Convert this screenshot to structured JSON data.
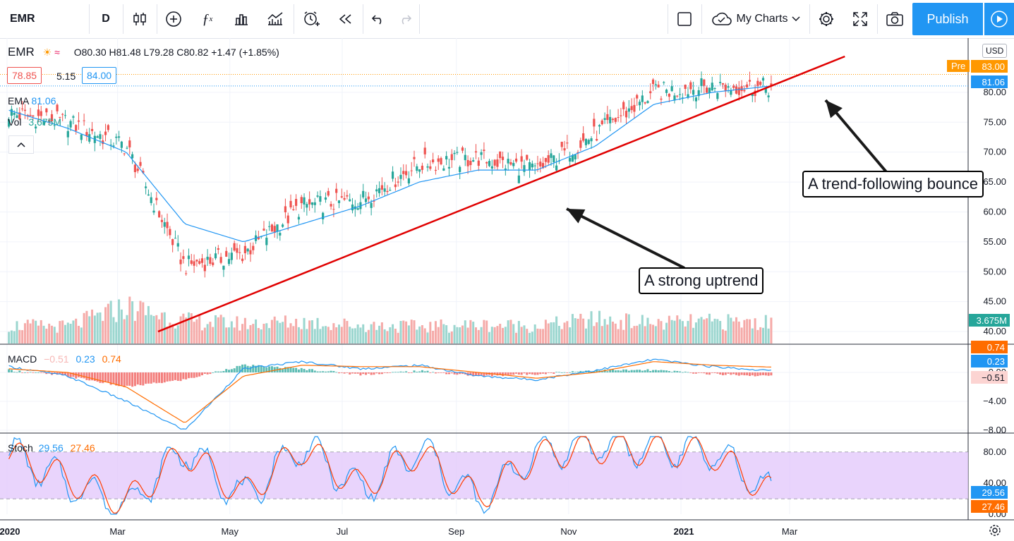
{
  "toolbar": {
    "symbol": "EMR",
    "interval": "D",
    "my_charts": "My Charts",
    "publish": "Publish"
  },
  "legend": {
    "symbol": "EMR",
    "ohlc": "O80.30 H81.48 L79.28 C80.82 +1.47 (+1.85%)",
    "bid": "78.85",
    "spread": "5.15",
    "ask": "84.00",
    "ema_label": "EMA",
    "ema_value": "81.06",
    "vol_label": "Vol",
    "vol_value": "3.675M",
    "macd_label": "MACD",
    "macd_hist": "−0.51",
    "macd_line": "0.23",
    "macd_signal": "0.74",
    "stoch_label": "Stoch",
    "stoch_k": "29.56",
    "stoch_d": "27.46"
  },
  "price_scale": {
    "currency": "USD",
    "ticks": [
      "80.00",
      "75.00",
      "70.00",
      "65.00",
      "60.00",
      "55.00",
      "50.00",
      "45.00",
      "40.00"
    ],
    "pre_label": "Pre",
    "pre_value": "83.00",
    "last_value": "81.06",
    "vol_value": "3.675M"
  },
  "macd_scale": {
    "ticks": [
      "0.00",
      "−4.00",
      "−8.00"
    ],
    "signal_tag": "0.74",
    "macd_tag": "0.23",
    "hist_tag": "−0.51"
  },
  "stoch_scale": {
    "ticks": [
      "80.00",
      "40.00",
      "0.00"
    ],
    "k_tag": "29.56",
    "d_tag": "27.46"
  },
  "time_axis": [
    "2020",
    "Mar",
    "May",
    "Jul",
    "Sep",
    "Nov",
    "2021",
    "Mar"
  ],
  "annotations": {
    "uptrend": "A strong uptrend",
    "bounce": "A trend-following bounce"
  },
  "colors": {
    "up": "#26a69a",
    "down": "#ef5350",
    "ema": "#2196f3",
    "macd": "#2196f3",
    "signal": "#ff6d00",
    "trendline": "#e00000",
    "stoch_band": "#e1c6fb",
    "accent": "#2196f3"
  },
  "chart_data": [
    {
      "type": "candlestick",
      "title": "EMR",
      "x": [
        "2020-01",
        "2020-02",
        "2020-03",
        "2020-04",
        "2020-05",
        "2020-06",
        "2020-07",
        "2020-08",
        "2020-09",
        "2020-10",
        "2020-11",
        "2020-12",
        "2021-01",
        "2021-02"
      ],
      "series": [
        {
          "name": "EMR",
          "values": [
            76.5,
            75,
            71,
            51,
            53,
            61,
            62,
            68,
            69,
            67,
            73,
            80,
            81,
            80.8
          ]
        },
        {
          "name": "EMA",
          "values": [
            77,
            74,
            70,
            58,
            55,
            58,
            61,
            65,
            67,
            67,
            71,
            78,
            80,
            81.06
          ]
        }
      ],
      "trendline": {
        "from": [
          "2020-03-23",
          40
        ],
        "to": [
          "2021-03-31",
          86
        ]
      },
      "ylim": [
        38,
        86
      ]
    },
    {
      "type": "bar",
      "title": "Vol",
      "x": [
        "2020-01",
        "2020-02",
        "2020-03",
        "2020-04",
        "2020-05",
        "2020-06",
        "2020-07",
        "2020-08",
        "2020-09",
        "2020-10",
        "2020-11",
        "2020-12",
        "2021-01",
        "2021-02"
      ],
      "values": [
        3.2,
        3.0,
        6.5,
        4.0,
        3.5,
        3.8,
        3.2,
        3.0,
        3.3,
        3.1,
        4.2,
        3.6,
        3.8,
        3.675
      ]
    },
    {
      "type": "line",
      "title": "MACD",
      "x": [
        "2020-01",
        "2020-02",
        "2020-03",
        "2020-04",
        "2020-05",
        "2020-06",
        "2020-07",
        "2020-08",
        "2020-09",
        "2020-10",
        "2020-11",
        "2020-12",
        "2021-01",
        "2021-02"
      ],
      "series": [
        {
          "name": "MACD",
          "values": [
            0.8,
            -0.5,
            -4,
            -8,
            0.5,
            1.5,
            0.5,
            1,
            -0.5,
            -1,
            0.3,
            1.8,
            0.8,
            0.23
          ]
        },
        {
          "name": "Signal",
          "values": [
            0.5,
            0,
            -2,
            -7,
            -0.5,
            1,
            0.8,
            0.8,
            0,
            -0.8,
            0,
            1.5,
            1,
            0.74
          ]
        },
        {
          "name": "Histogram",
          "values": [
            0.3,
            -0.5,
            -2,
            -1,
            1,
            0.5,
            -0.3,
            0.2,
            -0.5,
            -0.2,
            0.3,
            0.3,
            -0.2,
            -0.51
          ]
        }
      ],
      "ylim": [
        -9,
        2
      ]
    },
    {
      "type": "line",
      "title": "Stoch",
      "x": [
        "2020-01",
        "2020-02",
        "2020-03",
        "2020-04",
        "2020-05",
        "2020-06",
        "2020-07",
        "2020-08",
        "2020-09",
        "2020-10",
        "2020-11",
        "2020-12",
        "2021-01",
        "2021-02"
      ],
      "series": [
        {
          "name": "%K",
          "values": [
            80,
            40,
            10,
            85,
            20,
            90,
            30,
            85,
            15,
            80,
            90,
            85,
            80,
            29.56
          ]
        },
        {
          "name": "%D",
          "values": [
            78,
            45,
            15,
            80,
            25,
            85,
            35,
            80,
            20,
            75,
            85,
            82,
            78,
            27.46
          ]
        }
      ],
      "bands": [
        20,
        80
      ],
      "ylim": [
        0,
        100
      ]
    }
  ]
}
